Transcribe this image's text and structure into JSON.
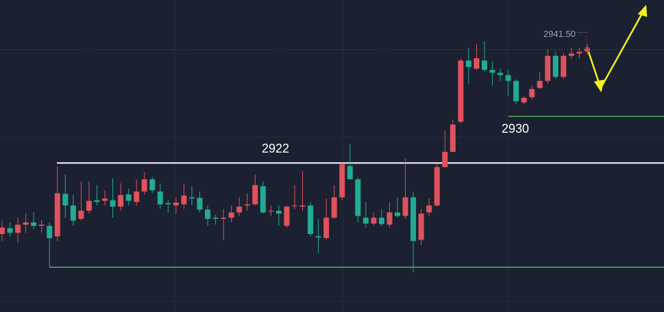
{
  "chart_data": {
    "type": "candlestick",
    "up_color": "#e0525e",
    "down_color": "#22ab94",
    "ylim": [
      2896.4,
      2950
    ],
    "open": [
      2909.8,
      2910.8,
      2910.0,
      2911.4,
      2911.8,
      2911.2,
      2911.2,
      2909.4,
      2916.7,
      2914.7,
      2912.4,
      2913.8,
      2915.6,
      2915.5,
      2915.6,
      2914.5,
      2916.6,
      2915.3,
      2917.1,
      2919.2,
      2917.1,
      2915.1,
      2914.7,
      2914.9,
      2916.1,
      2916.0,
      2914.0,
      2912.6,
      2912.4,
      2912.6,
      2913.5,
      2914.7,
      2914.9,
      2918.0,
      2913.8,
      2913.8,
      2911.2,
      2914.7,
      2914.5,
      2914.7,
      2909.4,
      2909.1,
      2912.6,
      2916.1,
      2921.5,
      2919.2,
      2912.6,
      2911.6,
      2912.6,
      2911.4,
      2913.5,
      2912.9,
      2916.1,
      2908.8,
      2913.5,
      2914.7,
      2921.3,
      2923.9,
      2929.1,
      2939.6,
      2938.2,
      2939.6,
      2938.0,
      2937.5,
      2937.1,
      2936.1,
      2932.4,
      2933.3,
      2934.9,
      2936.1,
      2940.4,
      2936.8,
      2940.4,
      2940.8,
      2941.2
    ],
    "high": [
      2912.1,
      2911.8,
      2912.6,
      2913.3,
      2913.5,
      2912.1,
      2911.8,
      2921.4,
      2920.0,
      2916.5,
      2918.8,
      2918.8,
      2918.2,
      2917.3,
      2919.4,
      2918.5,
      2917.6,
      2919.2,
      2920.4,
      2919.6,
      2918.5,
      2915.6,
      2916.1,
      2918.5,
      2918.0,
      2917.1,
      2914.7,
      2913.1,
      2914.1,
      2914.7,
      2916.1,
      2916.8,
      2920.0,
      2918.8,
      2914.7,
      2914.7,
      2914.7,
      2918.2,
      2920.6,
      2915.3,
      2912.4,
      2915.9,
      2918.2,
      2922.0,
      2925.3,
      2919.6,
      2915.3,
      2913.5,
      2914.1,
      2915.3,
      2916.1,
      2922.7,
      2917.1,
      2914.1,
      2915.9,
      2921.8,
      2927.6,
      2929.4,
      2940.0,
      2941.8,
      2942.4,
      2942.9,
      2939.4,
      2938.2,
      2938.0,
      2936.4,
      2933.5,
      2935.3,
      2937.6,
      2941.5,
      2941.2,
      2940.8,
      2941.8,
      2941.8,
      2942.4
    ],
    "low": [
      2908.6,
      2909.4,
      2908.2,
      2910.0,
      2910.6,
      2910.0,
      2904.1,
      2908.6,
      2912.6,
      2911.2,
      2912.1,
      2913.3,
      2914.7,
      2914.7,
      2912.6,
      2913.8,
      2914.7,
      2914.7,
      2916.5,
      2916.8,
      2914.1,
      2913.5,
      2913.3,
      2914.1,
      2914.7,
      2913.5,
      2911.2,
      2911.4,
      2908.8,
      2911.8,
      2912.9,
      2913.8,
      2914.7,
      2913.3,
      2912.9,
      2911.2,
      2910.9,
      2914.1,
      2913.8,
      2909.4,
      2906.5,
      2908.8,
      2912.4,
      2915.6,
      2919.2,
      2911.8,
      2910.9,
      2911.2,
      2911.2,
      2910.9,
      2912.6,
      2912.4,
      2903.2,
      2907.9,
      2912.9,
      2914.5,
      2921.2,
      2923.9,
      2928.8,
      2935.6,
      2938.0,
      2937.6,
      2935.3,
      2936.1,
      2933.5,
      2932.1,
      2932.1,
      2932.9,
      2934.7,
      2935.6,
      2936.5,
      2936.5,
      2939.9,
      2940.0,
      2940.6
    ],
    "close": [
      2910.9,
      2910.0,
      2911.4,
      2911.8,
      2911.2,
      2911.4,
      2909.1,
      2916.8,
      2914.7,
      2912.1,
      2913.8,
      2915.5,
      2915.3,
      2915.9,
      2914.5,
      2916.5,
      2915.5,
      2917.1,
      2919.2,
      2917.3,
      2914.9,
      2914.9,
      2915.2,
      2916.4,
      2915.9,
      2914.0,
      2912.4,
      2912.4,
      2912.6,
      2913.5,
      2914.5,
      2914.9,
      2918.2,
      2913.5,
      2913.8,
      2913.3,
      2914.5,
      2914.7,
      2914.7,
      2909.8,
      2909.2,
      2912.6,
      2916.1,
      2921.8,
      2919.2,
      2912.9,
      2911.6,
      2912.6,
      2911.5,
      2913.5,
      2912.9,
      2916.1,
      2908.6,
      2913.3,
      2914.7,
      2921.3,
      2923.9,
      2928.6,
      2939.6,
      2938.5,
      2940.0,
      2938.0,
      2937.5,
      2937.1,
      2936.1,
      2932.6,
      2933.2,
      2934.7,
      2936.1,
      2940.4,
      2936.8,
      2940.4,
      2940.8,
      2941.1,
      2941.5
    ],
    "levels": [
      {
        "value": 2922,
        "label": "2922",
        "color": "#ffffff"
      },
      {
        "value": 2930,
        "label": "2930",
        "color": "#5bd16a"
      },
      {
        "value": 2904.1,
        "color": "#5bd16a"
      }
    ],
    "last_price": {
      "value": 2941.5,
      "label": "2941.50"
    }
  }
}
